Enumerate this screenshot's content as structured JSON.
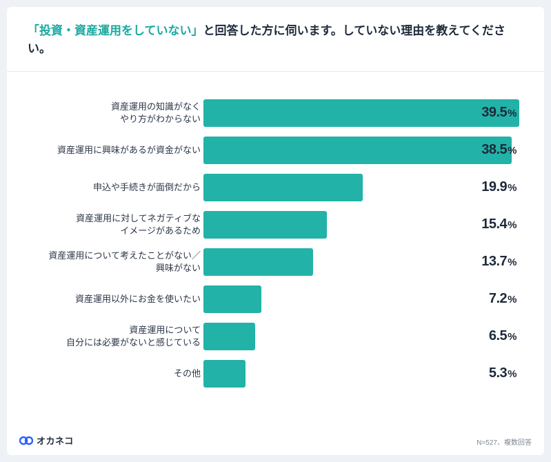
{
  "title": {
    "highlight": "「投資・資産運用をしていない」",
    "rest": "と回答した方に伺います。していない理由を教えてください。"
  },
  "chart": {
    "type": "bar",
    "bar_color": "#22b2a8",
    "background_color": "#ffffff",
    "page_background": "#eef1f5",
    "label_fontsize": 13,
    "value_fontsize": 20,
    "max_value": 40,
    "rows": [
      {
        "label": "資産運用の知識がなく\nやり方がわからない",
        "value": 39.5
      },
      {
        "label": "資産運用に興味があるが資金がない",
        "value": 38.5
      },
      {
        "label": "申込や手続きが面倒だから",
        "value": 19.9
      },
      {
        "label": "資産運用に対してネガティブな\nイメージがあるため",
        "value": 15.4
      },
      {
        "label": "資産運用について考えたことがない／\n興味がない",
        "value": 13.7
      },
      {
        "label": "資産運用以外にお金を使いたい",
        "value": 7.2
      },
      {
        "label": "資産運用について\n自分には必要がないと感じている",
        "value": 6.5
      },
      {
        "label": "その他",
        "value": 5.3
      }
    ]
  },
  "brand": {
    "icon_color": "#2a5fff",
    "text": "オカネコ"
  },
  "note": "N=527、複数回答"
}
